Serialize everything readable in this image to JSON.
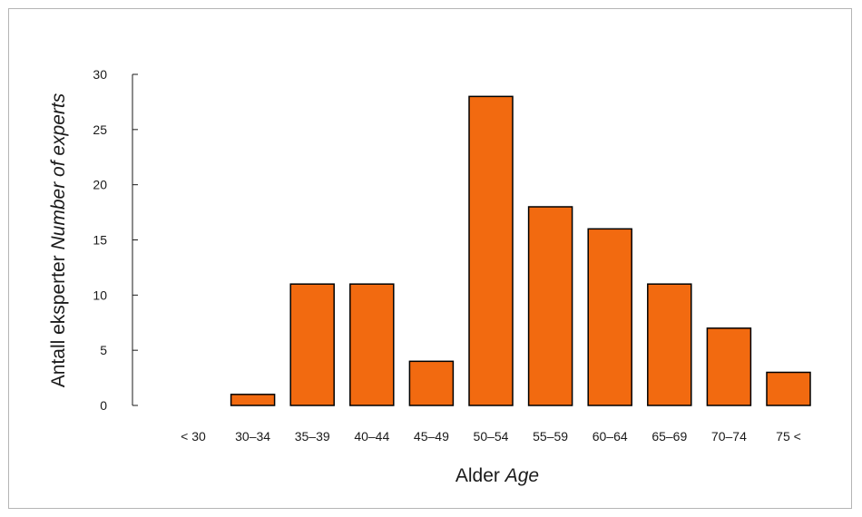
{
  "chart_data": {
    "type": "bar",
    "categories": [
      "< 30",
      "30–34",
      "35–39",
      "40–44",
      "45–49",
      "50–54",
      "55–59",
      "60–64",
      "65–69",
      "70–74",
      "75 <"
    ],
    "values": [
      0,
      1,
      11,
      11,
      4,
      28,
      18,
      16,
      11,
      7,
      3
    ],
    "xlabel": "Alder",
    "xlabel_en": "Age",
    "ylabel": "Antall eksperter",
    "ylabel_en": "Number of experts",
    "ylim": [
      0,
      30
    ],
    "yticks": [
      0,
      5,
      10,
      15,
      20,
      25,
      30
    ],
    "grid": false,
    "bar_color": "#f26a10",
    "bar_edge_color": "#000000"
  }
}
